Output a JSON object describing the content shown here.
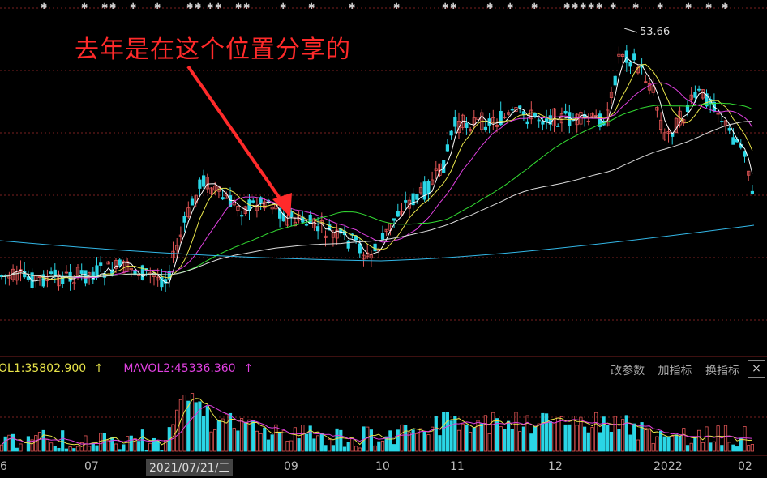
{
  "annotation": "去年是在这个位置分享的",
  "peak_label": "53.66",
  "volume_legend": {
    "ma1": "OL1:35802.900",
    "ma1_arrow": "↑",
    "ma2": "MAVOL2:45336.360",
    "ma2_arrow": "↑"
  },
  "toolbar": {
    "params": "改参数",
    "add_indicator": "加指标",
    "switch_indicator": "换指标",
    "close": "×"
  },
  "x_axis": {
    "labels": [
      "6",
      "07",
      "09",
      "10",
      "11",
      "12",
      "2022",
      "02"
    ],
    "cursor_date": "2021/07/21/三"
  },
  "colors": {
    "up": "#e25555",
    "down": "#2ad6e6",
    "ma5": "#ffffff",
    "ma10": "#e8e44a",
    "ma20": "#e040e0",
    "ma60": "#33dd33",
    "ma120": "#dddddd",
    "ma250": "#33b8e8",
    "arrow": "#ff2a2a",
    "grid": "#7a2020"
  }
}
